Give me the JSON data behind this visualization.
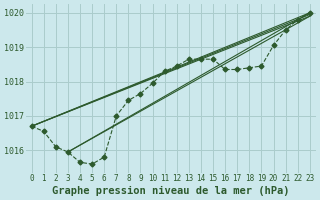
{
  "title": "Graphe pression niveau de la mer (hPa)",
  "bg_color": "#cce8ec",
  "grid_color": "#aacccc",
  "line_color": "#2d5a2d",
  "xlim": [
    -0.5,
    23.5
  ],
  "ylim": [
    1015.35,
    1020.25
  ],
  "xticks": [
    0,
    1,
    2,
    3,
    4,
    5,
    6,
    7,
    8,
    9,
    10,
    11,
    12,
    13,
    14,
    15,
    16,
    17,
    18,
    19,
    20,
    21,
    22,
    23
  ],
  "yticks": [
    1016,
    1017,
    1018,
    1019,
    1020
  ],
  "series_main": {
    "x": [
      0,
      1,
      2,
      3,
      4,
      5,
      6,
      7,
      8,
      9,
      10,
      11,
      12,
      13,
      14,
      15,
      16,
      17,
      18,
      19,
      20,
      21,
      22,
      23
    ],
    "y": [
      1016.7,
      1016.55,
      1016.1,
      1015.95,
      1015.65,
      1015.6,
      1015.8,
      1017.0,
      1017.45,
      1017.65,
      1017.95,
      1018.3,
      1018.45,
      1018.65,
      1018.65,
      1018.65,
      1018.35,
      1018.35,
      1018.4,
      1018.45,
      1019.05,
      1019.5,
      1019.8,
      1020.0
    ],
    "linestyle": "--",
    "marker": "D",
    "markersize": 2.5
  },
  "series_straight": [
    {
      "x": [
        0,
        23
      ],
      "y": [
        1016.7,
        1020.0
      ]
    },
    {
      "x": [
        0,
        23
      ],
      "y": [
        1016.7,
        1019.95
      ]
    },
    {
      "x": [
        0,
        23
      ],
      "y": [
        1016.7,
        1019.9
      ]
    },
    {
      "x": [
        3,
        23
      ],
      "y": [
        1015.95,
        1020.0
      ]
    },
    {
      "x": [
        3,
        23
      ],
      "y": [
        1015.95,
        1019.9
      ]
    }
  ],
  "label_fontsize": 5.5,
  "ylabel_fontsize": 6.0,
  "title_fontsize": 7.5
}
